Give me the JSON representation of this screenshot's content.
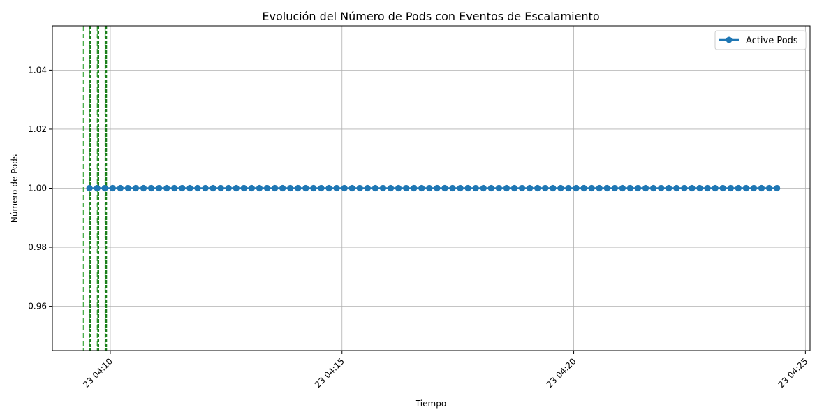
{
  "chart_data": {
    "type": "line",
    "title": "Evolución del Número de Pods con Eventos de Escalamiento",
    "xlabel": "Tiempo",
    "ylabel": "Número de Pods",
    "x_start_minute": 9.55,
    "x_step_minutes": 0.1667,
    "x_count": 90,
    "x_unit": "minutes after 04:00 (day 23)",
    "xlim": [
      8.75,
      25.1
    ],
    "ylim": [
      0.945,
      1.055
    ],
    "x_ticks": [
      {
        "value": 10,
        "label": "23 04:10"
      },
      {
        "value": 15,
        "label": "23 04:15"
      },
      {
        "value": 20,
        "label": "23 04:20"
      },
      {
        "value": 25,
        "label": "23 04:25"
      }
    ],
    "y_ticks": [
      {
        "value": 0.96,
        "label": "0.96"
      },
      {
        "value": 0.98,
        "label": "0.98"
      },
      {
        "value": 1.0,
        "label": "1.00"
      },
      {
        "value": 1.02,
        "label": "1.02"
      },
      {
        "value": 1.04,
        "label": "1.04"
      }
    ],
    "series": [
      {
        "name": "Active Pods",
        "color": "#1f77b4",
        "constant_value": 1
      }
    ],
    "scaling_events": [
      {
        "x": 9.42,
        "color": "#2ca02c",
        "style": "thin"
      },
      {
        "x": 9.55,
        "color": "#2ca02c",
        "style": "thin"
      },
      {
        "x": 9.57,
        "color": "#1a7f1a",
        "style": "bold"
      },
      {
        "x": 9.72,
        "color": "#2ca02c",
        "style": "thin"
      },
      {
        "x": 9.74,
        "color": "#1a7f1a",
        "style": "bold"
      },
      {
        "x": 9.89,
        "color": "#2ca02c",
        "style": "thin"
      },
      {
        "x": 9.91,
        "color": "#1a7f1a",
        "style": "bold"
      }
    ],
    "grid": true,
    "legend_position": "top-right"
  }
}
